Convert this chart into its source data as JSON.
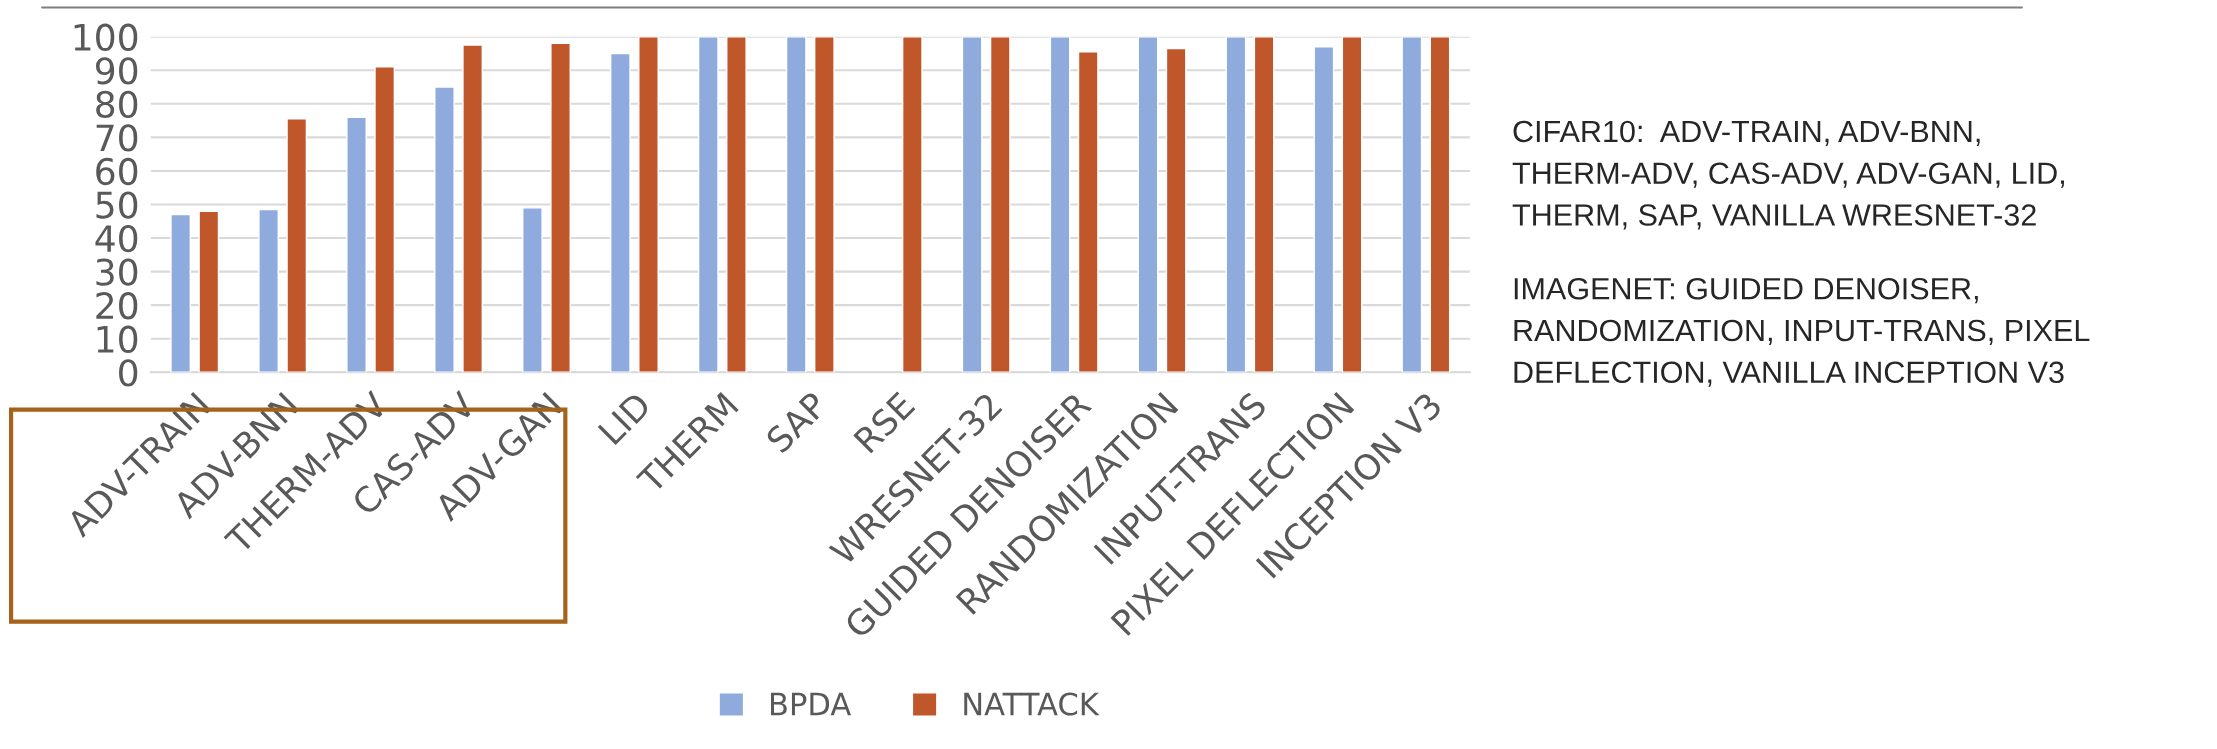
{
  "chart_data": {
    "type": "bar",
    "categories": [
      "ADV-TRAIN",
      "ADV-BNN",
      "THERM-ADV",
      "CAS-ADV",
      "ADV-GAN",
      "LID",
      "THERM",
      "SAP",
      "RSE",
      "WRESNET-32",
      "GUIDED DENOISER",
      "RANDOMIZATION",
      "INPUT-TRANS",
      "PIXEL DEFLECTION",
      "INCEPTION V3"
    ],
    "series": [
      {
        "name": "BPDA",
        "color": "#8faadc",
        "values": [
          47,
          48.5,
          76,
          85,
          49,
          95,
          100,
          100,
          null,
          100,
          100,
          100,
          100,
          97,
          100
        ]
      },
      {
        "name": "NATTACK",
        "color": "#bf572b",
        "values": [
          48,
          75.5,
          91,
          97.5,
          98,
          100,
          100,
          100,
          100,
          100,
          95.5,
          96.5,
          100,
          100,
          100
        ]
      }
    ],
    "ylim": [
      0,
      100
    ],
    "yticks": [
      0,
      10,
      20,
      30,
      40,
      50,
      60,
      70,
      80,
      90,
      100
    ],
    "grid": "y",
    "legend": "bottom",
    "annotations": [
      "CIFAR10:  ADV-TRAIN, ADV-BNN,\nTHERM-ADV, CAS-ADV, ADV-GAN, LID,\nTHERM, SAP, VANILLA WRESNET-32",
      "IMAGENET: GUIDED DENOISER,\nRANDOMIZATION, INPUT-TRANS, PIXEL\nDEFLECTION, VANILLA INCEPTION V3"
    ]
  }
}
